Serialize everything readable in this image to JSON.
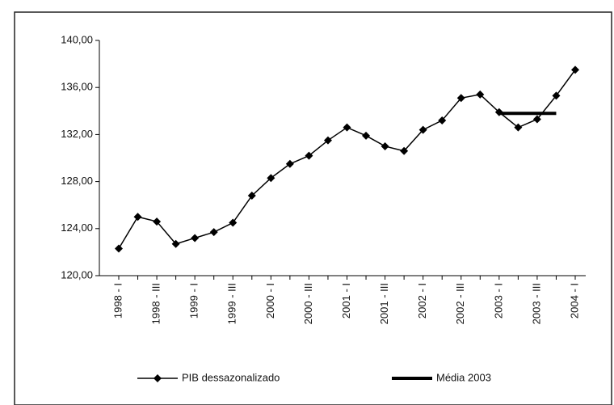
{
  "chart_data": {
    "type": "line",
    "categories": [
      "1998 - I",
      null,
      "1998 - III",
      null,
      "1999 - I",
      null,
      "1999 - III",
      null,
      "2000 - I",
      null,
      "2000 - III",
      null,
      "2001 - I",
      null,
      "2001 - III",
      null,
      "2002 - I",
      null,
      "2002 - III",
      null,
      "2003 - I",
      null,
      "2003 - III",
      null,
      "2004 - I"
    ],
    "series": [
      {
        "name": "PIB dessazonalizado",
        "color": "#000000",
        "marker": "diamond",
        "values": [
          122.3,
          125.0,
          124.6,
          122.7,
          123.2,
          123.7,
          124.5,
          126.8,
          128.3,
          129.5,
          130.2,
          131.5,
          132.6,
          131.9,
          131.0,
          130.6,
          132.4,
          133.2,
          135.1,
          135.4,
          133.9,
          132.6,
          133.3,
          135.3,
          137.5
        ]
      },
      {
        "name": "Média 2003",
        "color": "#000000",
        "values": [
          null,
          null,
          null,
          null,
          null,
          null,
          null,
          null,
          null,
          null,
          null,
          null,
          null,
          null,
          null,
          null,
          null,
          null,
          null,
          null,
          133.8,
          133.8,
          133.8,
          133.8,
          null
        ]
      }
    ],
    "ylim": [
      120,
      140
    ],
    "yticks": [
      {
        "value": 120,
        "label": "120,00"
      },
      {
        "value": 124,
        "label": "124,00"
      },
      {
        "value": 128,
        "label": "128,00"
      },
      {
        "value": 132,
        "label": "132,00"
      },
      {
        "value": 136,
        "label": "136,00"
      },
      {
        "value": 140,
        "label": "140,00"
      }
    ],
    "legend": "bottom"
  }
}
